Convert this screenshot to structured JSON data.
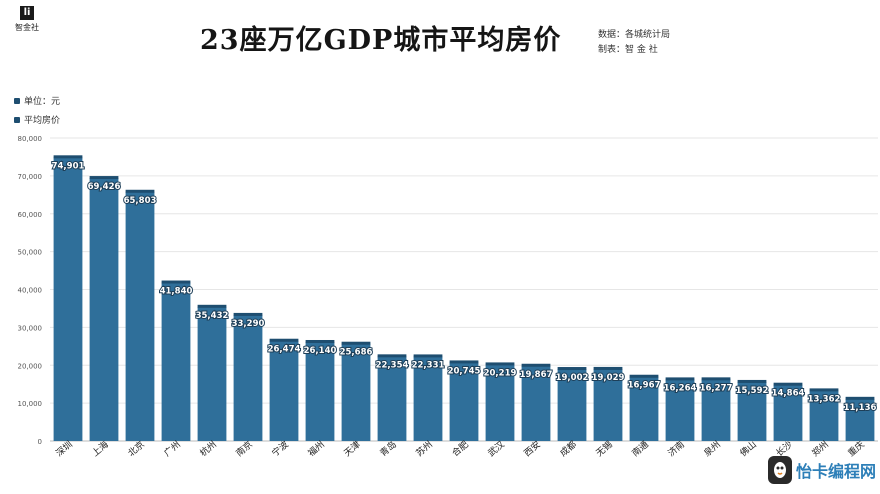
{
  "logo": {
    "mark": "li",
    "name": "智金社"
  },
  "title": "23座万亿GDP城市平均房价",
  "source": "数据：各城统计局",
  "credit": "制表：智 金 社",
  "legend": {
    "unit": "单位：元",
    "series": "平均房价"
  },
  "colors": {
    "bar": "#2f6f9a",
    "bar_cap": "#1e4e70",
    "grid": "#e6e6e6",
    "axis": "#bbbbbb"
  },
  "watermark": {
    "text": "怡卡编程网",
    "icon": "rocket-bird-icon"
  },
  "chart_data": {
    "type": "bar",
    "title": "23座万亿GDP城市平均房价",
    "ylim": [
      0,
      80000
    ],
    "yticks": [
      "0",
      "10,000",
      "20,000",
      "30,000",
      "40,000",
      "50,000",
      "60,000",
      "70,000",
      "80,000"
    ],
    "grid": true,
    "legend_position": "top-left",
    "categories": [
      "深圳",
      "上海",
      "北京",
      "广州",
      "杭州",
      "南京",
      "宁波",
      "福州",
      "天津",
      "青岛",
      "苏州",
      "合肥",
      "武汉",
      "西安",
      "成都",
      "无锡",
      "南通",
      "济南",
      "泉州",
      "佛山",
      "长沙",
      "郑州",
      "重庆"
    ],
    "series": [
      {
        "name": "平均房价",
        "values": [
          74901,
          69426,
          65803,
          41840,
          35432,
          33290,
          26474,
          26140,
          25686,
          22354,
          22331,
          20745,
          20219,
          19867,
          19002,
          19029,
          16967,
          16264,
          16277,
          15592,
          14864,
          13362,
          11136
        ],
        "labels": [
          "74,901",
          "69,426",
          "65,803",
          "41,840",
          "35,432",
          "33,290",
          "26,474",
          "26,140",
          "25,686",
          "22,354",
          "22,331",
          "20,745",
          "20,219",
          "19,867",
          "19,002",
          "19,029",
          "16,967",
          "16,264",
          "16,277",
          "15,592",
          "14,864",
          "13,362",
          "11,136"
        ]
      }
    ]
  }
}
